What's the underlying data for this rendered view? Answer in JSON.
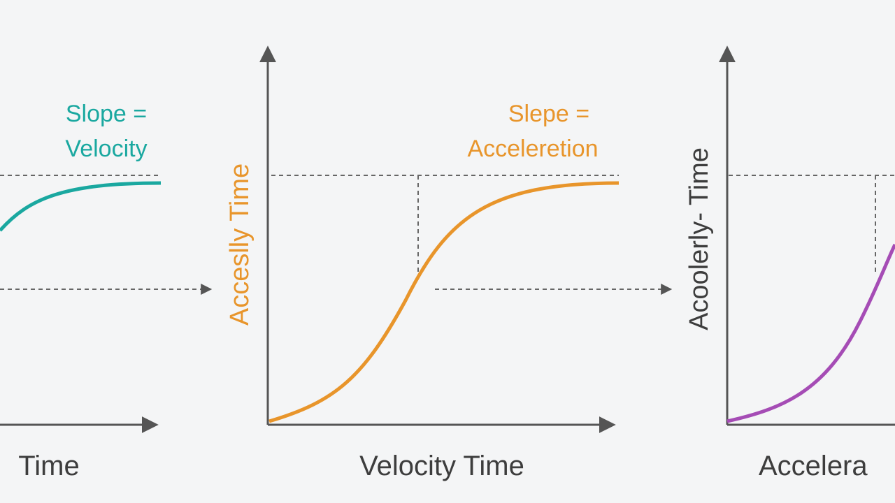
{
  "panels": [
    {
      "annotation": [
        "Slope =",
        "Velocity"
      ],
      "x_label": "Time"
    },
    {
      "annotation": [
        "Slepe =",
        "Acceleretion"
      ],
      "y_label": "Acceslly Time",
      "x_label": "Velocity Time"
    },
    {
      "y_label": "Acoolerly- Time",
      "x_label": "Accelera"
    }
  ]
}
